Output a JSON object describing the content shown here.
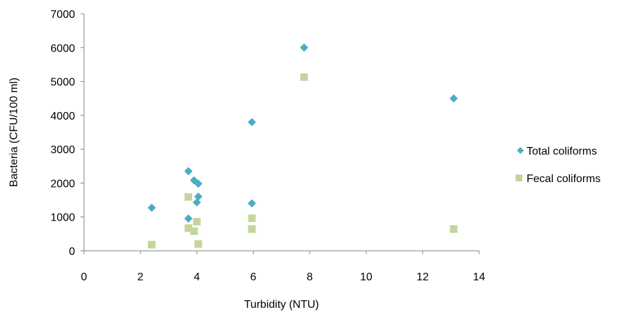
{
  "chart_data": {
    "type": "scatter",
    "title": "",
    "xlabel": "Turbidity (NTU)",
    "ylabel": "Bacteria (CFU/100 ml)",
    "xlim": [
      0,
      14
    ],
    "ylim": [
      0,
      7000
    ],
    "xticks": [
      "0",
      "2",
      "4",
      "6",
      "8",
      "10",
      "12",
      "14"
    ],
    "yticks": [
      "0",
      "1000",
      "2000",
      "3000",
      "4000",
      "5000",
      "6000",
      "7000"
    ],
    "grid": false,
    "legend_position": "right",
    "series": [
      {
        "name": "Total coliforms",
        "marker": "diamond",
        "color": "#4BACC6",
        "points": [
          {
            "x": 2.4,
            "y": 1270
          },
          {
            "x": 3.7,
            "y": 2350
          },
          {
            "x": 3.7,
            "y": 950
          },
          {
            "x": 3.9,
            "y": 2080
          },
          {
            "x": 4.05,
            "y": 1980
          },
          {
            "x": 4.05,
            "y": 1600
          },
          {
            "x": 4.0,
            "y": 1430
          },
          {
            "x": 5.95,
            "y": 3800
          },
          {
            "x": 5.95,
            "y": 1400
          },
          {
            "x": 7.8,
            "y": 6000
          },
          {
            "x": 13.1,
            "y": 4500
          }
        ]
      },
      {
        "name": "Fecal coliforms",
        "marker": "square",
        "color": "#C3D69B",
        "points": [
          {
            "x": 2.4,
            "y": 180
          },
          {
            "x": 3.7,
            "y": 1590
          },
          {
            "x": 3.7,
            "y": 670
          },
          {
            "x": 3.9,
            "y": 580
          },
          {
            "x": 4.0,
            "y": 860
          },
          {
            "x": 4.05,
            "y": 200
          },
          {
            "x": 5.95,
            "y": 960
          },
          {
            "x": 5.95,
            "y": 640
          },
          {
            "x": 7.8,
            "y": 5130
          },
          {
            "x": 13.1,
            "y": 640
          }
        ]
      }
    ]
  }
}
